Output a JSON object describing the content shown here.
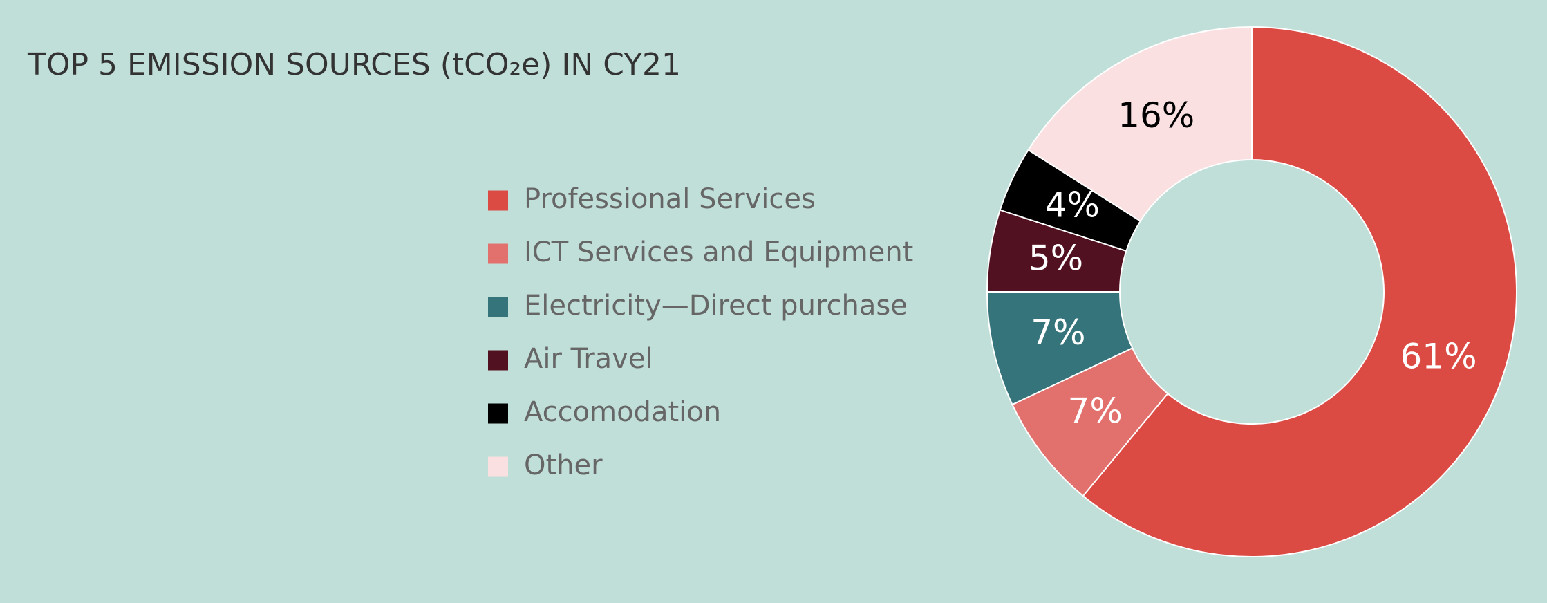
{
  "chart_data": {
    "type": "donut",
    "title": "TOP 5 EMISSION SOURCES (tCO₂e) IN CY21",
    "categories": [
      "Professional Services",
      "ICT Services and Equipment",
      "Electricity—Direct purchase",
      "Air Travel",
      "Accomodation",
      "Other"
    ],
    "values": [
      61,
      7,
      7,
      5,
      4,
      16
    ],
    "value_labels": [
      "61%",
      "7%",
      "7%",
      "5%",
      "4%",
      "16%"
    ],
    "colors": [
      "#db4a43",
      "#e2716d",
      "#36747b",
      "#521121",
      "#000000",
      "#fae0e0"
    ]
  }
}
